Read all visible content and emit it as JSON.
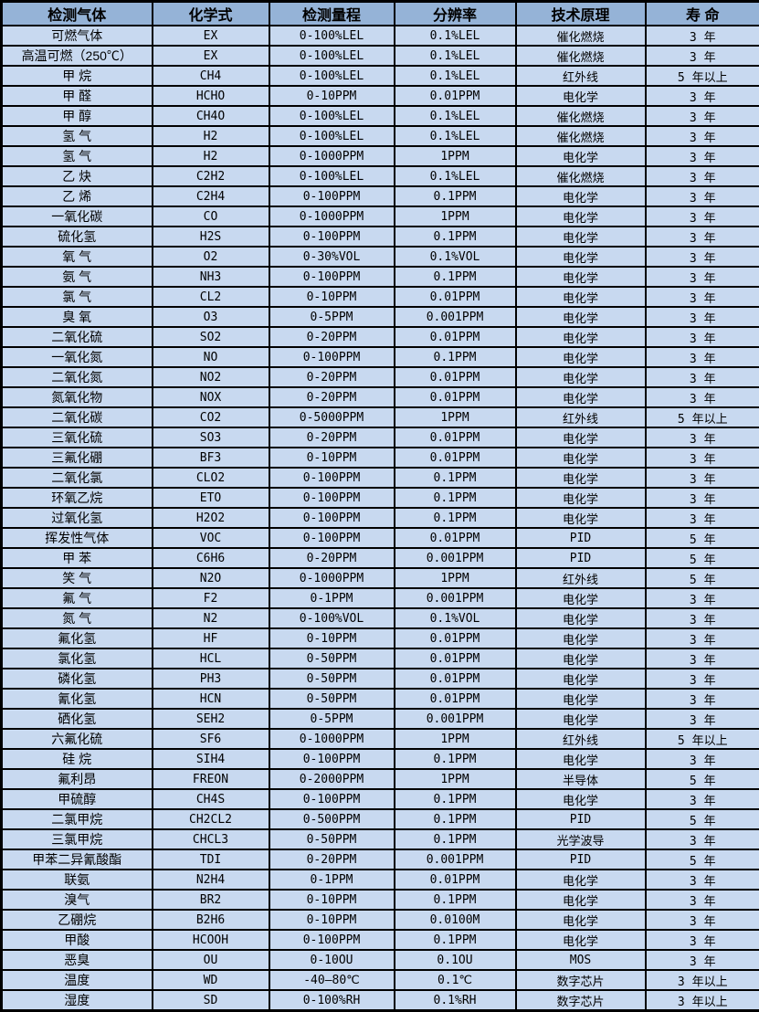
{
  "chart_data": {
    "type": "table",
    "columns": [
      "检测气体",
      "化学式",
      "检测量程",
      "分辨率",
      "技术原理",
      "寿 命"
    ],
    "rows": [
      [
        "可燃气体",
        "EX",
        "0-100%LEL",
        "0.1%LEL",
        "催化燃烧",
        "3 年"
      ],
      [
        "高温可燃（250℃）",
        "EX",
        "0-100%LEL",
        "0.1%LEL",
        "催化燃烧",
        "3 年"
      ],
      [
        "甲 烷",
        "CH4",
        "0-100%LEL",
        "0.1%LEL",
        "红外线",
        "5 年以上"
      ],
      [
        "甲 醛",
        "HCHO",
        "0-10PPM",
        "0.01PPM",
        "电化学",
        "3 年"
      ],
      [
        "甲 醇",
        "CH4O",
        "0-100%LEL",
        "0.1%LEL",
        "催化燃烧",
        "3 年"
      ],
      [
        "氢 气",
        "H2",
        "0-100%LEL",
        "0.1%LEL",
        "催化燃烧",
        "3 年"
      ],
      [
        "氢 气",
        "H2",
        "0-1000PPM",
        "1PPM",
        "电化学",
        "3 年"
      ],
      [
        "乙 炔",
        "C2H2",
        "0-100%LEL",
        "0.1%LEL",
        "催化燃烧",
        "3 年"
      ],
      [
        "乙 烯",
        "C2H4",
        "0-100PPM",
        "0.1PPM",
        "电化学",
        "3 年"
      ],
      [
        "一氧化碳",
        "CO",
        "0-1000PPM",
        "1PPM",
        "电化学",
        "3 年"
      ],
      [
        "硫化氢",
        "H2S",
        "0-100PPM",
        "0.1PPM",
        "电化学",
        "3 年"
      ],
      [
        "氧 气",
        "O2",
        "0-30%VOL",
        "0.1%VOL",
        "电化学",
        "3 年"
      ],
      [
        "氨 气",
        "NH3",
        "0-100PPM",
        "0.1PPM",
        "电化学",
        "3 年"
      ],
      [
        "氯 气",
        "CL2",
        "0-10PPM",
        "0.01PPM",
        "电化学",
        "3 年"
      ],
      [
        "臭 氧",
        "O3",
        "0-5PPM",
        "0.001PPM",
        "电化学",
        "3 年"
      ],
      [
        "二氧化硫",
        "SO2",
        "0-20PPM",
        "0.01PPM",
        "电化学",
        "3 年"
      ],
      [
        "一氧化氮",
        "NO",
        "0-100PPM",
        "0.1PPM",
        "电化学",
        "3 年"
      ],
      [
        "二氧化氮",
        "NO2",
        "0-20PPM",
        "0.01PPM",
        "电化学",
        "3 年"
      ],
      [
        "氮氧化物",
        "NOX",
        "0-20PPM",
        "0.01PPM",
        "电化学",
        "3 年"
      ],
      [
        "二氧化碳",
        "CO2",
        "0-5000PPM",
        "1PPM",
        "红外线",
        "5 年以上"
      ],
      [
        "三氧化硫",
        "SO3",
        "0-20PPM",
        "0.01PPM",
        "电化学",
        "3 年"
      ],
      [
        "三氟化硼",
        "BF3",
        "0-10PPM",
        "0.01PPM",
        "电化学",
        "3 年"
      ],
      [
        "二氧化氯",
        "CLO2",
        "0-100PPM",
        "0.1PPM",
        "电化学",
        "3 年"
      ],
      [
        "环氧乙烷",
        "ETO",
        "0-100PPM",
        "0.1PPM",
        "电化学",
        "3 年"
      ],
      [
        "过氧化氢",
        "H2O2",
        "0-100PPM",
        "0.1PPM",
        "电化学",
        "3 年"
      ],
      [
        "挥发性气体",
        "VOC",
        "0-100PPM",
        "0.01PPM",
        "PID",
        "5 年"
      ],
      [
        "甲 苯",
        "C6H6",
        "0-20PPM",
        "0.001PPM",
        "PID",
        "5 年"
      ],
      [
        "笑 气",
        "N2O",
        "0-1000PPM",
        "1PPM",
        "红外线",
        "5 年"
      ],
      [
        "氟 气",
        "F2",
        "0-1PPM",
        "0.001PPM",
        "电化学",
        "3 年"
      ],
      [
        "氮 气",
        "N2",
        "0-100%VOL",
        "0.1%VOL",
        "电化学",
        "3 年"
      ],
      [
        "氟化氢",
        "HF",
        "0-10PPM",
        "0.01PPM",
        "电化学",
        "3 年"
      ],
      [
        "氯化氢",
        "HCL",
        "0-50PPM",
        "0.01PPM",
        "电化学",
        "3 年"
      ],
      [
        "磷化氢",
        "PH3",
        "0-50PPM",
        "0.01PPM",
        "电化学",
        "3 年"
      ],
      [
        "氰化氢",
        "HCN",
        "0-50PPM",
        "0.01PPM",
        "电化学",
        "3 年"
      ],
      [
        "硒化氢",
        "SEH2",
        "0-5PPM",
        "0.001PPM",
        "电化学",
        "3 年"
      ],
      [
        "六氟化硫",
        "SF6",
        "0-1000PPM",
        "1PPM",
        "红外线",
        "5 年以上"
      ],
      [
        "硅 烷",
        "SIH4",
        "0-100PPM",
        "0.1PPM",
        "电化学",
        "3 年"
      ],
      [
        "氟利昂",
        "FREON",
        "0-2000PPM",
        "1PPM",
        "半导体",
        "5 年"
      ],
      [
        "甲硫醇",
        "CH4S",
        "0-100PPM",
        "0.1PPM",
        "电化学",
        "3 年"
      ],
      [
        "二氯甲烷",
        "CH2CL2",
        "0-500PPM",
        "0.1PPM",
        "PID",
        "5 年"
      ],
      [
        "三氯甲烷",
        "CHCL3",
        "0-50PPM",
        "0.1PPM",
        "光学波导",
        "3 年"
      ],
      [
        "甲苯二异氰酸酯",
        "TDI",
        "0-20PPM",
        "0.001PPM",
        "PID",
        "5 年"
      ],
      [
        "联氨",
        "N2H4",
        "0-1PPM",
        "0.01PPM",
        "电化学",
        "3 年"
      ],
      [
        "溴气",
        "BR2",
        "0-10PPM",
        "0.1PPM",
        "电化学",
        "3 年"
      ],
      [
        "乙硼烷",
        "B2H6",
        "0-10PPM",
        "0.0100M",
        "电化学",
        "3 年"
      ],
      [
        "甲酸",
        "HCOOH",
        "0-100PPM",
        "0.1PPM",
        "电化学",
        "3 年"
      ],
      [
        "恶臭",
        "OU",
        "0-10OU",
        "0.1OU",
        "MOS",
        "3 年"
      ],
      [
        "温度",
        "WD",
        "-40—80℃",
        "0.1℃",
        "数字芯片",
        "3 年以上"
      ],
      [
        "湿度",
        "SD",
        "0-100%RH",
        "0.1%RH",
        "数字芯片",
        "3 年以上"
      ]
    ]
  },
  "colors": {
    "header_bg": "#95B3D7",
    "row_bg": "#C8D9F0",
    "border": "#000000",
    "text": "#000000"
  }
}
